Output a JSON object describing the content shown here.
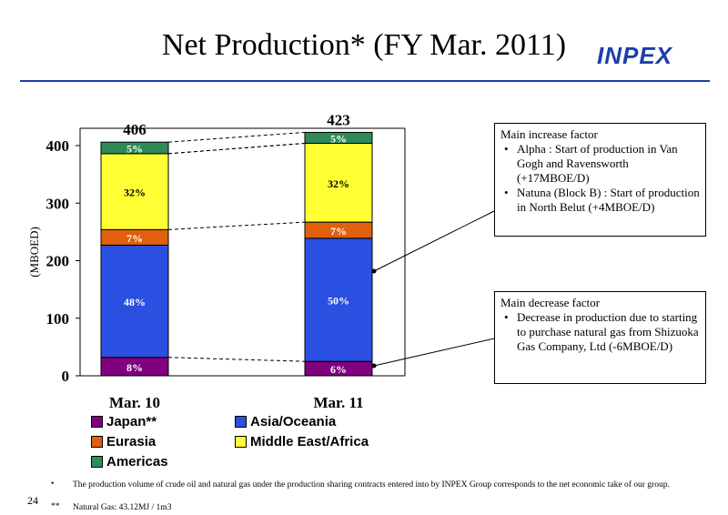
{
  "slide": {
    "title": "Net Production* (FY Mar. 2011)",
    "logo": "INPEX",
    "page_number": "24",
    "footnotes": [
      {
        "mark": "•",
        "text": "The production volume of crude oil and natural gas under the production sharing contracts entered into by INPEX Group corresponds to the net economic take of our group."
      },
      {
        "mark": "**",
        "text": "Natural Gas: 43.12MJ / 1m3"
      }
    ]
  },
  "callouts": {
    "increase": {
      "heading": "Main increase factor",
      "items": [
        "Alpha : Start of production in Van Gogh and Ravensworth (+17MBOE/D)",
        "Natuna (Block B) : Start of production in North Belut (+4MBOE/D)"
      ]
    },
    "decrease": {
      "heading": "Main decrease factor",
      "items": [
        "Decrease in production due to starting to purchase natural gas from Shizuoka Gas Company, Ltd (-6MBOE/D)"
      ]
    }
  },
  "chart_data": {
    "type": "bar",
    "stacked": true,
    "categories": [
      "Mar. 10",
      "Mar. 11"
    ],
    "totals": [
      "406",
      "423"
    ],
    "ylabel": "(MBOED)",
    "ylim": [
      0,
      430
    ],
    "yticks": [
      0,
      100,
      200,
      300,
      400
    ],
    "series": [
      {
        "name": "Japan**",
        "color": "#800080",
        "values": [
          32,
          25
        ],
        "labels": [
          "8%",
          "6%"
        ]
      },
      {
        "name": "Asia/Oceania",
        "color": "#2b4fe0",
        "values": [
          195,
          214
        ],
        "labels": [
          "48%",
          "50%"
        ]
      },
      {
        "name": "Eurasia",
        "color": "#e0600e",
        "values": [
          27,
          28
        ],
        "labels": [
          "7%",
          "7%"
        ]
      },
      {
        "name": "Middle East/Africa",
        "color": "#ffff33",
        "values": [
          132,
          137
        ],
        "labels": [
          "32%",
          "32%"
        ]
      },
      {
        "name": "Americas",
        "color": "#2e8b57",
        "values": [
          20,
          19
        ],
        "labels": [
          "5%",
          "5%"
        ]
      }
    ]
  }
}
